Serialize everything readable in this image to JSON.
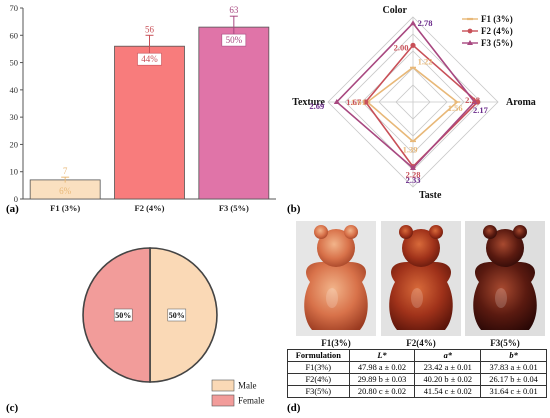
{
  "colors": {
    "f1": "#e8b878",
    "f2": "#c85058",
    "f3": "#a84880",
    "bar_f1": "#fae0c0",
    "bar_f2": "#f87c7c",
    "bar_f3": "#e074a8",
    "pie_male": "#fad9b6",
    "pie_female": "#f29c9a",
    "radar_grid": "#c8c8c8"
  },
  "chart_data": [
    {
      "panel": "(a)",
      "type": "bar",
      "categories": [
        "F1 (3%)",
        "F2 (4%)",
        "F3 (5%)"
      ],
      "values": [
        7,
        56,
        63
      ],
      "value_labels": [
        "7",
        "56",
        "63"
      ],
      "inner_labels": [
        "6%",
        "44%",
        "50%"
      ],
      "error_bars": [
        1,
        4,
        4
      ],
      "ylim": [
        0,
        70
      ],
      "yticks": [
        0,
        10,
        20,
        30,
        40,
        50,
        60,
        70
      ],
      "grid": false
    },
    {
      "panel": "(b)",
      "type": "radar",
      "axes": [
        "Color",
        "Aroma",
        "Taste",
        "Texture"
      ],
      "rmax": 3,
      "series": [
        {
          "name": "F1 (3%)",
          "values": [
            1.22,
            1.56,
            1.39,
            1.61
          ],
          "labels": [
            "1.22",
            "1.56",
            "1.39",
            "1.61"
          ]
        },
        {
          "name": "F2 (4%)",
          "values": [
            2.0,
            2.28,
            2.28,
            1.67
          ],
          "labels": [
            "2.00",
            "2.28",
            "2.28",
            "1.67"
          ]
        },
        {
          "name": "F3 (5%)",
          "values": [
            2.78,
            2.17,
            2.33,
            2.69
          ],
          "labels": [
            "2.78",
            "2.17",
            "2.33",
            "2.69"
          ]
        }
      ],
      "legend_position": "top-right"
    },
    {
      "panel": "(c)",
      "type": "pie",
      "categories": [
        "Male",
        "Female"
      ],
      "values": [
        50,
        50
      ],
      "labels": [
        "50%",
        "50%"
      ],
      "legend_position": "bottom-right"
    },
    {
      "panel": "(d)",
      "type": "table",
      "image_captions": [
        "F1(3%)",
        "F2(4%)",
        "F3(5%)"
      ],
      "columns": [
        "Formulation",
        "L*",
        "a*",
        "b*"
      ],
      "rows": [
        [
          "F1(3%)",
          "47.98 a ± 0.02",
          "23.42 a ± 0.01",
          "37.83 a ± 0.01"
        ],
        [
          "F2(4%)",
          "29.89 b ± 0.03",
          "40.20 b ± 0.02",
          "26.17 b ± 0.04"
        ],
        [
          "F3(5%)",
          "20.80 c ± 0.02",
          "41.54 c ± 0.02",
          "31.64 c ± 0.01"
        ]
      ]
    }
  ],
  "panel_labels": [
    "(a)",
    "(b)",
    "(c)",
    "(d)"
  ],
  "photo_icons": [
    "gummy-bear-light",
    "gummy-bear-medium",
    "gummy-bear-dark"
  ]
}
